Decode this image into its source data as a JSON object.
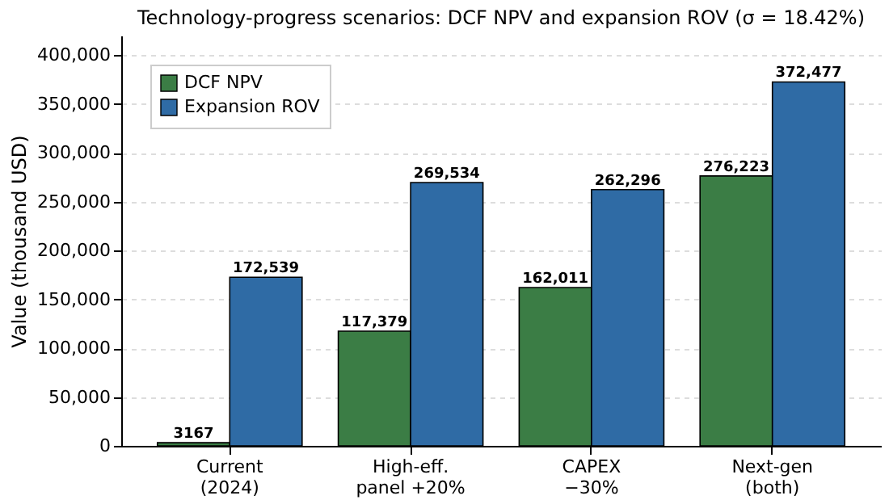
{
  "chart_data": {
    "type": "bar",
    "title": "Technology-progress scenarios: DCF NPV and expansion ROV (σ = 18.42%)",
    "ylabel": "Value (thousand USD)",
    "categories": [
      "Current\n(2024)",
      "High-eff.\npanel +20%",
      "CAPEX\n−30%",
      "Next-gen\n(both)"
    ],
    "series": [
      {
        "name": "DCF NPV",
        "color": "#3b7d45",
        "values": [
          3167,
          117379,
          162011,
          276223
        ],
        "value_labels": [
          "3167",
          "117,379",
          "162,011",
          "276,223"
        ]
      },
      {
        "name": "Expansion ROV",
        "color": "#2f6ba5",
        "values": [
          172539,
          269534,
          262296,
          372477
        ],
        "value_labels": [
          "172,539",
          "269,534",
          "262,296",
          "372,477"
        ]
      }
    ],
    "ylim": [
      0,
      420000
    ],
    "yticks": [
      0,
      {
        "value": 50000,
        "label": "50,000"
      },
      {
        "value": 100000,
        "label": "100,000"
      },
      {
        "value": 150000,
        "label": "150,000"
      },
      {
        "value": 200000,
        "label": "200,000"
      },
      {
        "value": 250000,
        "label": "250,000"
      },
      {
        "value": 300000,
        "label": "300,000"
      },
      {
        "value": 350000,
        "label": "350,000"
      },
      {
        "value": 400000,
        "label": "400,000"
      }
    ],
    "grid": "y",
    "legend": "top left"
  }
}
